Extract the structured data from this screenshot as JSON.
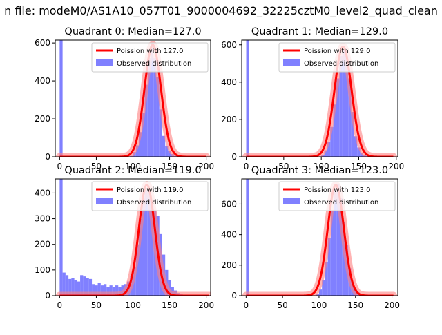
{
  "figure": {
    "suptitle": "n file: modeM0/AS1A10_057T01_9000004692_32225cztM0_level2_quad_clean",
    "colors": {
      "hist": "#8080ff",
      "fit": "#ff0000",
      "fit_band": "#ff8080",
      "axis": "#000000",
      "background": "#ffffff"
    }
  },
  "chart_data": [
    {
      "type": "bar",
      "title": "Quadrant 0: Median=127.0",
      "legend": [
        "Poission with 127.0",
        "Observed distribution"
      ],
      "legend_loc": "upper right",
      "xlabel": "",
      "ylabel": "",
      "xlim": [
        -6,
        206
      ],
      "ylim": [
        0,
        615
      ],
      "xticks": [
        0,
        50,
        100,
        150,
        200
      ],
      "yticks": [
        0,
        200,
        400,
        600
      ],
      "hist": {
        "bin_width": 4,
        "bins": [
          [
            0,
            615
          ],
          [
            96,
            5
          ],
          [
            100,
            25
          ],
          [
            104,
            60
          ],
          [
            108,
            130
          ],
          [
            112,
            230
          ],
          [
            116,
            380
          ],
          [
            120,
            520
          ],
          [
            124,
            600
          ],
          [
            128,
            520
          ],
          [
            132,
            420
          ],
          [
            136,
            250
          ],
          [
            140,
            110
          ],
          [
            144,
            55
          ],
          [
            148,
            30
          ],
          [
            152,
            15
          ],
          [
            156,
            5
          ]
        ]
      },
      "fit": {
        "mean": 127,
        "peak": 590,
        "sigma": 11.3,
        "x_range": [
          0,
          200
        ]
      }
    },
    {
      "type": "bar",
      "title": "Quadrant 1: Median=129.0",
      "legend": [
        "Poission with 129.0",
        "Observed distribution"
      ],
      "legend_loc": "upper right",
      "xlabel": "",
      "ylabel": "",
      "xlim": [
        -6,
        202
      ],
      "ylim": [
        0,
        625
      ],
      "xticks": [
        0,
        50,
        100,
        150,
        200
      ],
      "yticks": [
        0,
        200,
        400,
        600
      ],
      "hist": {
        "bin_width": 4,
        "bins": [
          [
            0,
            625
          ],
          [
            100,
            10
          ],
          [
            104,
            35
          ],
          [
            108,
            80
          ],
          [
            112,
            160
          ],
          [
            116,
            280
          ],
          [
            120,
            420
          ],
          [
            124,
            540
          ],
          [
            128,
            585
          ],
          [
            132,
            540
          ],
          [
            136,
            420
          ],
          [
            140,
            240
          ],
          [
            144,
            110
          ],
          [
            148,
            50
          ],
          [
            152,
            20
          ],
          [
            156,
            10
          ],
          [
            160,
            5
          ]
        ]
      },
      "fit": {
        "mean": 129,
        "peak": 590,
        "sigma": 11.4,
        "x_range": [
          0,
          196
        ]
      }
    },
    {
      "type": "bar",
      "title": "Quadrant 2: Median=119.0",
      "legend": [
        "Poission with 119.0",
        "Observed distribution"
      ],
      "legend_loc": "upper right",
      "xlabel": "",
      "ylabel": "",
      "xlim": [
        -6,
        206
      ],
      "ylim": [
        0,
        455
      ],
      "xticks": [
        0,
        50,
        100,
        150,
        200
      ],
      "yticks": [
        0,
        100,
        200,
        300,
        400
      ],
      "hist": {
        "bin_width": 4,
        "bins": [
          [
            0,
            455
          ],
          [
            4,
            90
          ],
          [
            8,
            80
          ],
          [
            12,
            65
          ],
          [
            16,
            70
          ],
          [
            20,
            60
          ],
          [
            24,
            55
          ],
          [
            28,
            80
          ],
          [
            32,
            75
          ],
          [
            36,
            70
          ],
          [
            40,
            65
          ],
          [
            44,
            45
          ],
          [
            48,
            40
          ],
          [
            52,
            50
          ],
          [
            56,
            40
          ],
          [
            60,
            45
          ],
          [
            64,
            35
          ],
          [
            68,
            40
          ],
          [
            72,
            35
          ],
          [
            76,
            40
          ],
          [
            80,
            35
          ],
          [
            84,
            40
          ],
          [
            88,
            45
          ],
          [
            92,
            55
          ],
          [
            96,
            75
          ],
          [
            100,
            110
          ],
          [
            104,
            200
          ],
          [
            108,
            300
          ],
          [
            112,
            380
          ],
          [
            116,
            410
          ],
          [
            120,
            400
          ],
          [
            124,
            360
          ],
          [
            128,
            330
          ],
          [
            132,
            310
          ],
          [
            136,
            240
          ],
          [
            140,
            160
          ],
          [
            144,
            100
          ],
          [
            148,
            60
          ],
          [
            152,
            35
          ],
          [
            156,
            20
          ],
          [
            160,
            10
          ],
          [
            164,
            5
          ]
        ]
      },
      "fit": {
        "mean": 119,
        "peak": 432,
        "sigma": 10.9,
        "x_range": [
          0,
          204
        ]
      }
    },
    {
      "type": "bar",
      "title": "Quadrant 3: Median=123.0",
      "legend": [
        "Poission with 123.0",
        "Observed distribution"
      ],
      "legend_loc": "upper right",
      "xlabel": "",
      "ylabel": "",
      "xlim": [
        -6,
        208
      ],
      "ylim": [
        0,
        765
      ],
      "xticks": [
        0,
        50,
        100,
        150,
        200
      ],
      "yticks": [
        0,
        200,
        400,
        600
      ],
      "hist": {
        "bin_width": 4,
        "bins": [
          [
            0,
            765
          ],
          [
            96,
            10
          ],
          [
            100,
            40
          ],
          [
            104,
            100
          ],
          [
            108,
            220
          ],
          [
            112,
            380
          ],
          [
            116,
            560
          ],
          [
            120,
            690
          ],
          [
            124,
            730
          ],
          [
            128,
            640
          ],
          [
            132,
            480
          ],
          [
            136,
            330
          ],
          [
            140,
            180
          ],
          [
            144,
            90
          ],
          [
            148,
            40
          ],
          [
            152,
            20
          ],
          [
            156,
            8
          ]
        ]
      },
      "fit": {
        "mean": 123,
        "peak": 725,
        "sigma": 11.1,
        "x_range": [
          0,
          202
        ]
      }
    }
  ]
}
